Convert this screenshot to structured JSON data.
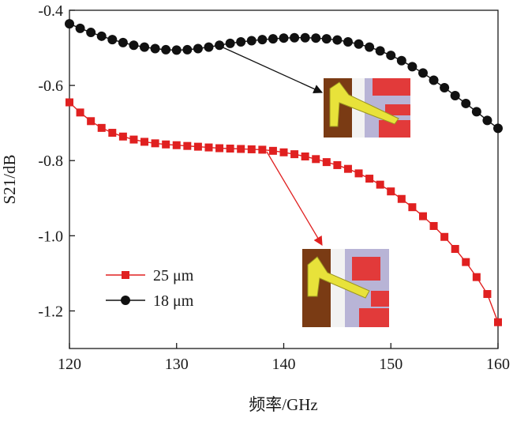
{
  "chart_data": {
    "type": "line",
    "xlabel": "频率/GHz",
    "ylabel": "S21/dB",
    "xlim": [
      120,
      160
    ],
    "ylim": [
      -1.3,
      -0.4
    ],
    "xticks": [
      120,
      130,
      140,
      150,
      160
    ],
    "yticks": [
      -0.4,
      -0.6,
      -0.8,
      -1.0,
      -1.2
    ],
    "ytick_labels": [
      "-0.4",
      "-0.6",
      "-0.8",
      "-1.0",
      "-1.2"
    ],
    "grid": false,
    "legend_position": "bottom-left",
    "series": [
      {
        "name": "25 μm",
        "color": "#e02020",
        "marker": "square",
        "x": [
          120,
          121,
          122,
          123,
          124,
          125,
          126,
          127,
          128,
          129,
          130,
          131,
          132,
          133,
          134,
          135,
          136,
          137,
          138,
          139,
          140,
          141,
          142,
          143,
          144,
          145,
          146,
          147,
          148,
          149,
          150,
          151,
          152,
          153,
          154,
          155,
          156,
          157,
          158,
          159,
          160
        ],
        "y": [
          -0.645,
          -0.672,
          -0.695,
          -0.713,
          -0.726,
          -0.736,
          -0.744,
          -0.75,
          -0.754,
          -0.757,
          -0.759,
          -0.761,
          -0.763,
          -0.765,
          -0.767,
          -0.768,
          -0.769,
          -0.77,
          -0.771,
          -0.774,
          -0.778,
          -0.783,
          -0.789,
          -0.796,
          -0.804,
          -0.812,
          -0.822,
          -0.834,
          -0.848,
          -0.864,
          -0.882,
          -0.902,
          -0.924,
          -0.948,
          -0.974,
          -1.003,
          -1.035,
          -1.07,
          -1.11,
          -1.155,
          -1.23
        ]
      },
      {
        "name": "18 μm",
        "color": "#111111",
        "marker": "circle",
        "x": [
          120,
          121,
          122,
          123,
          124,
          125,
          126,
          127,
          128,
          129,
          130,
          131,
          132,
          133,
          134,
          135,
          136,
          137,
          138,
          139,
          140,
          141,
          142,
          143,
          144,
          145,
          146,
          147,
          148,
          149,
          150,
          151,
          152,
          153,
          154,
          155,
          156,
          157,
          158,
          159,
          160
        ],
        "y": [
          -0.436,
          -0.448,
          -0.459,
          -0.469,
          -0.478,
          -0.486,
          -0.493,
          -0.498,
          -0.502,
          -0.505,
          -0.506,
          -0.505,
          -0.502,
          -0.498,
          -0.493,
          -0.488,
          -0.484,
          -0.481,
          -0.478,
          -0.476,
          -0.474,
          -0.473,
          -0.473,
          -0.474,
          -0.476,
          -0.479,
          -0.484,
          -0.49,
          -0.498,
          -0.508,
          -0.52,
          -0.534,
          -0.55,
          -0.567,
          -0.586,
          -0.606,
          -0.627,
          -0.648,
          -0.67,
          -0.693,
          -0.714
        ]
      }
    ],
    "insets": [
      {
        "name": "18 μm structure",
        "pointer_color": "#111111"
      },
      {
        "name": "25 μm structure",
        "pointer_color": "#e02020"
      }
    ]
  }
}
